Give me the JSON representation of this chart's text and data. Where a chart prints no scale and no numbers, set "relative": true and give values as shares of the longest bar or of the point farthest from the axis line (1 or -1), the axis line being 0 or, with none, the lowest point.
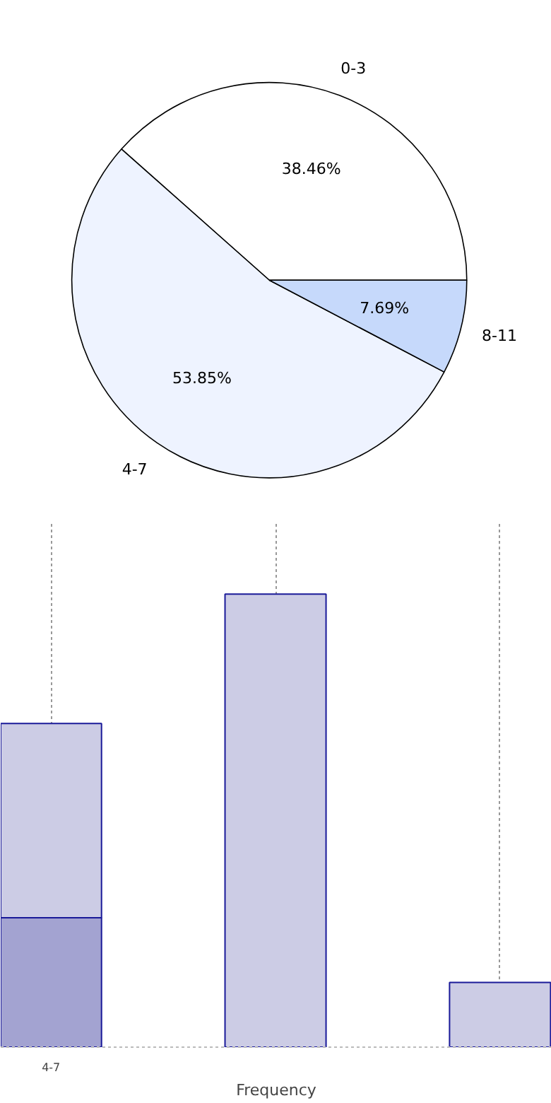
{
  "chart_data": [
    {
      "type": "pie",
      "categories": [
        "0-3",
        "4-7",
        "8-11"
      ],
      "values": [
        38.46,
        53.85,
        7.69
      ],
      "colors": [
        "#ffffff",
        "#eef3ff",
        "#c6d9fb"
      ],
      "value_labels": [
        "38.46%",
        "53.85%",
        "7.69%"
      ]
    },
    {
      "type": "bar",
      "categories": [
        "4-7",
        null,
        null
      ],
      "xlabel": "Frequency",
      "relative": true,
      "stacked": true,
      "grid": "x",
      "series": [
        {
          "color": "#a3a3d1",
          "values": [
            0.2857,
            null,
            null
          ]
        },
        {
          "color": "#ccccE5",
          "values": [
            0.4286,
            1,
            0.1429
          ]
        }
      ]
    }
  ]
}
